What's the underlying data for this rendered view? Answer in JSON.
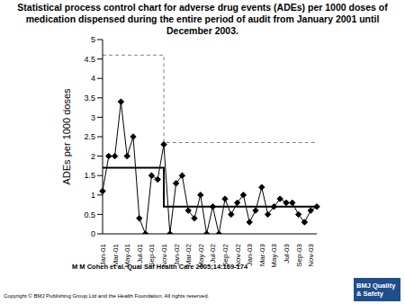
{
  "chart_data": {
    "type": "line",
    "title": "Statistical process control chart for adverse drug events (ADEs) per 1000 doses of medication dispensed during the entire period of audit from January 2001 until December 2003.",
    "ylabel": "ADEs per 1000 doses",
    "categories": [
      "Jan-01",
      null,
      "Mar-01",
      null,
      "May-01",
      null,
      "Jul-01",
      null,
      "Sep-01",
      null,
      "Nov-01",
      null,
      "Jan-02",
      null,
      "Mar-02",
      null,
      "May-02",
      null,
      "Jul-02",
      null,
      "Sep-02",
      null,
      "Nov-02",
      null,
      "Jan-03",
      null,
      "Mar-03",
      null,
      "May-03",
      null,
      "Jul-03",
      null,
      "Sep-03",
      null,
      "Nov-03",
      null
    ],
    "series": [
      {
        "type": "line",
        "color": "#000000",
        "marker": "diamond",
        "line_style": "solid",
        "values": [
          1.1,
          2.0,
          2.0,
          3.4,
          2.0,
          2.5,
          0.4,
          0.0,
          1.5,
          1.4,
          2.3,
          0.0,
          1.3,
          1.5,
          0.6,
          0.4,
          1.0,
          0.0,
          0.7,
          0.0,
          0.9,
          0.5,
          0.8,
          1.0,
          0.3,
          0.6,
          1.2,
          0.5,
          0.7,
          0.9,
          0.8,
          0.8,
          0.5,
          0.3,
          0.6,
          0.7
        ]
      },
      {
        "type": "step",
        "color": "#000000",
        "marker": "none",
        "line_style": "solid",
        "values": [
          1.7,
          1.7,
          1.7,
          1.7,
          1.7,
          1.7,
          1.7,
          1.7,
          1.7,
          1.7,
          1.7,
          0.7,
          0.7,
          0.7,
          0.7,
          0.7,
          0.7,
          0.7,
          0.7,
          0.7,
          0.7,
          0.7,
          0.7,
          0.7,
          0.7,
          0.7,
          0.7,
          0.7,
          0.7,
          0.7,
          0.7,
          0.7,
          0.7,
          0.7,
          0.7,
          0.7
        ]
      },
      {
        "type": "step",
        "color": "#808080",
        "marker": "none",
        "line_style": "dashed",
        "values": [
          4.6,
          4.6,
          4.6,
          4.6,
          4.6,
          4.6,
          4.6,
          4.6,
          4.6,
          4.6,
          4.6,
          2.35,
          2.35,
          2.35,
          2.35,
          2.35,
          2.35,
          2.35,
          2.35,
          2.35,
          2.35,
          2.35,
          2.35,
          2.35,
          2.35,
          2.35,
          2.35,
          2.35,
          2.35,
          2.35,
          2.35,
          2.35,
          2.35,
          2.35,
          2.35,
          2.35
        ]
      }
    ],
    "ylim": [
      0,
      5
    ],
    "yticks": [
      0,
      0.5,
      1,
      1.5,
      2,
      2.5,
      3,
      3.5,
      4,
      4.5,
      5
    ],
    "grid": false,
    "source": "M M Cohen et al. Qual Saf Health Care 2005;14:169-174",
    "copyright": "Copyright © BMJ Publishing Group Ltd and the Health Foundation. All rights reserved.",
    "logo": "BMJ Quality & Safety"
  }
}
